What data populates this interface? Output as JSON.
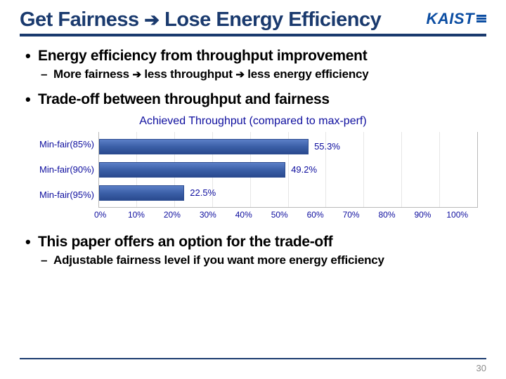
{
  "title_parts": [
    "Get Fairness ",
    "➔",
    " Lose Energy Efficiency"
  ],
  "logo_text": "KAIST",
  "bullet1": "Energy efficiency from throughput improvement",
  "sub1_parts": [
    "More fairness ",
    "➔",
    " less throughput ",
    "➔",
    " less energy efficiency"
  ],
  "bullet2": "Trade-off between throughput and fairness",
  "bullet3": "This paper offers an option for the trade-off",
  "sub3": "Adjustable fairness level if you want more energy efficiency",
  "page_number": "30",
  "chart": {
    "title": "Achieved Throughput (compared to max-perf)",
    "categories": [
      "Min-fair(85%)",
      "Min-fair(90%)",
      "Min-fair(95%)"
    ],
    "values": [
      55.3,
      49.2,
      22.5
    ],
    "value_labels": [
      "55.3%",
      "49.2%",
      "22.5%"
    ],
    "xticks": [
      "0%",
      "10%",
      "20%",
      "30%",
      "40%",
      "50%",
      "60%",
      "70%",
      "80%",
      "90%",
      "100%"
    ],
    "xlim": [
      0,
      100
    ],
    "bar_color": "#3b5fa7",
    "text_color": "#0d0d9e",
    "grid_color": "#e6e6e6"
  }
}
